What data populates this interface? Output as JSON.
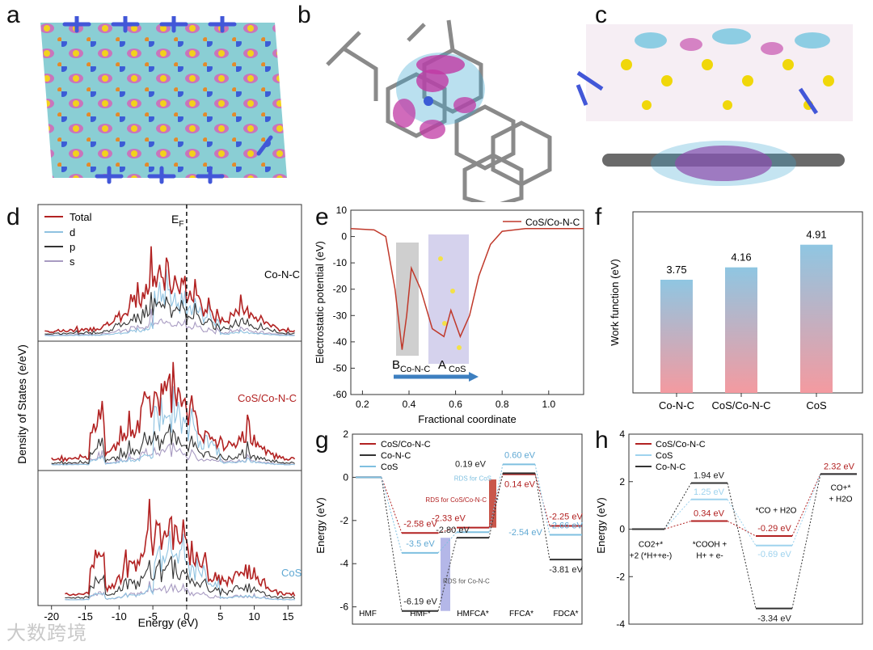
{
  "panels": {
    "a": {
      "letter": "a"
    },
    "b": {
      "letter": "b"
    },
    "c": {
      "letter": "c"
    },
    "d": {
      "letter": "d"
    },
    "e": {
      "letter": "e"
    },
    "f": {
      "letter": "f"
    },
    "g": {
      "letter": "g"
    },
    "h": {
      "letter": "h"
    }
  },
  "watermark": "大数跨境",
  "chart_data": [
    {
      "id": "d",
      "type": "line",
      "xlabel": "Energy (eV)",
      "ylabel": "Density of States (e/eV)",
      "fermi_label": "E",
      "fermi_sub": "F",
      "xlim": [
        -22,
        17
      ],
      "xticks": [
        -20,
        -15,
        -10,
        -5,
        0,
        5,
        10,
        15
      ],
      "legend": [
        "Total",
        "d",
        "p",
        "s"
      ],
      "subpanels": [
        "Co-N-C",
        "CoS/Co-N-C",
        "CoS"
      ],
      "colors": {
        "Total": "#b22222",
        "d": "#8fc2e0",
        "p": "#333333",
        "s": "#a89bc2"
      }
    },
    {
      "id": "e",
      "type": "line",
      "title": "",
      "xlabel": "Fractional coordinate",
      "ylabel": "Electrostatic potential (eV)",
      "xlim": [
        0.15,
        1.15
      ],
      "ylim": [
        -60,
        10
      ],
      "xticks": [
        0.2,
        0.4,
        0.6,
        0.8,
        1.0
      ],
      "yticks": [
        10,
        0,
        -10,
        -20,
        -30,
        -40,
        -50,
        -60
      ],
      "legend": "CoS/Co-N-C",
      "labels": {
        "B": "B",
        "B_sub": "Co-N-C",
        "A": "A",
        "A_sub": "CoS"
      },
      "series": [
        {
          "name": "CoS/Co-N-C",
          "x": [
            0.15,
            0.25,
            0.3,
            0.34,
            0.37,
            0.39,
            0.41,
            0.45,
            0.5,
            0.55,
            0.58,
            0.62,
            0.66,
            0.7,
            0.75,
            0.8,
            0.9,
            1.15
          ],
          "y": [
            3,
            2.5,
            0,
            -20,
            -43,
            -30,
            -12,
            -20,
            -35,
            -38,
            -28,
            -38,
            -30,
            -15,
            -3,
            2,
            3,
            3
          ]
        }
      ]
    },
    {
      "id": "f",
      "type": "bar",
      "ylabel": "Work function (eV)",
      "categories": [
        "Co-N-C",
        "CoS/Co-N-C",
        "CoS"
      ],
      "values": [
        3.75,
        4.16,
        4.91
      ],
      "labels": [
        "3.75",
        "4.16",
        "4.91"
      ],
      "ylim": [
        0,
        6
      ]
    },
    {
      "id": "g",
      "type": "line",
      "ylabel": "Energy (eV)",
      "ylim": [
        -6.8,
        2
      ],
      "yticks": [
        2,
        0,
        -2,
        -4,
        -6
      ],
      "xticks_labels": [
        "HMF",
        "HMF*",
        "HMFCA*",
        "FFCA*",
        "FDCA*"
      ],
      "legend": [
        "CoS/Co-N-C",
        "Co-N-C",
        "CoS"
      ],
      "series": [
        {
          "name": "CoS/Co-N-C",
          "values": [
            0,
            -2.58,
            -2.33,
            0.14,
            -2.25
          ],
          "labels": [
            "",
            "-2.58 eV",
            "-2.33 eV",
            "0.14 eV",
            "-2.25 eV"
          ]
        },
        {
          "name": "Co-N-C",
          "values": [
            0,
            -6.19,
            -2.8,
            0.19,
            -3.81
          ],
          "labels": [
            "",
            "-6.19 eV",
            "-2.80 eV",
            "0.19 eV",
            "-3.81 eV"
          ]
        },
        {
          "name": "CoS",
          "values": [
            0,
            -3.5,
            -2.54,
            0.6,
            -2.66
          ],
          "labels": [
            "",
            "-3.5 eV",
            "-2.54 eV",
            "0.60 eV",
            "-2.66 eV"
          ]
        }
      ],
      "rds": [
        "RDS for CoS",
        "RDS for CoS/Co-N-C",
        "RDS for Co-N-C"
      ]
    },
    {
      "id": "h",
      "type": "line",
      "ylabel": "Energy (eV)",
      "ylim": [
        -4,
        4
      ],
      "yticks": [
        4,
        2,
        0,
        -2,
        -4
      ],
      "legend": [
        "CoS/Co-N-C",
        "CoS",
        "Co-N-C"
      ],
      "states": [
        "CO2+*\n+2 (*H++e-)",
        "*COOH +\nH+ + e-",
        "*CO + H2O",
        "CO+*\n+ H2O"
      ],
      "series": [
        {
          "name": "CoS/Co-N-C",
          "values": [
            0,
            0.34,
            -0.29,
            2.32
          ],
          "labels": [
            "",
            "0.34 eV",
            "-0.29 eV",
            "2.32 eV"
          ]
        },
        {
          "name": "CoS",
          "values": [
            0,
            1.25,
            -0.69,
            2.32
          ],
          "labels": [
            "",
            "1.25 eV",
            "-0.69 eV",
            ""
          ]
        },
        {
          "name": "Co-N-C",
          "values": [
            0,
            1.94,
            -3.34,
            2.32
          ],
          "labels": [
            "",
            "1.94 eV",
            "-3.34 eV",
            ""
          ]
        }
      ]
    }
  ]
}
